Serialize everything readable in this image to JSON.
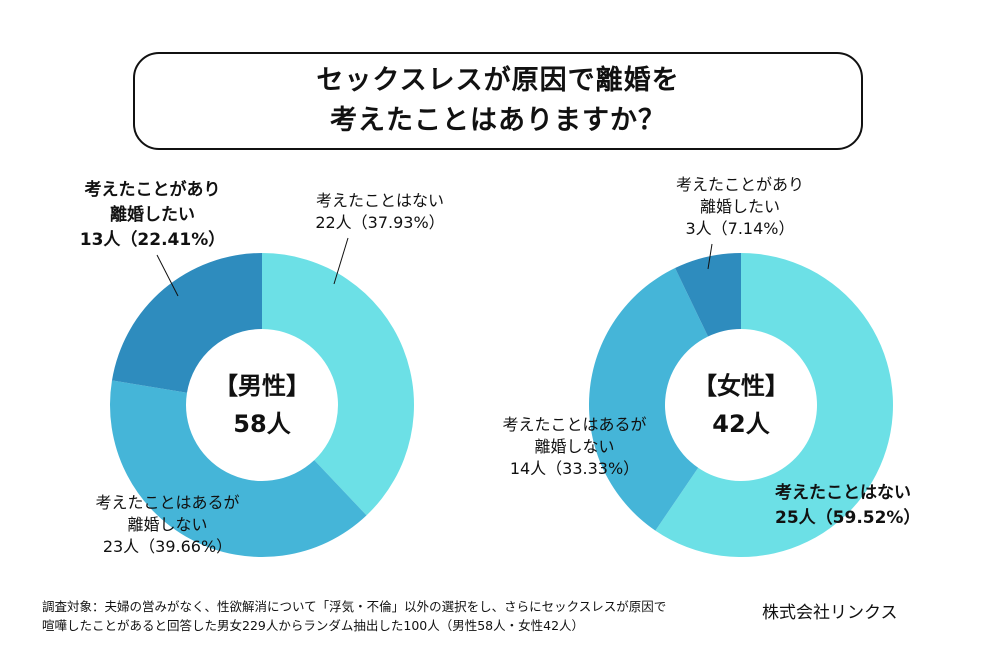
{
  "title": {
    "line1": "セックスレスが原因で離婚を",
    "line2": "考えたことはありますか？"
  },
  "colors": {
    "never": "#6ce0e6",
    "considered_not_divorce": "#45b5d8",
    "want_divorce": "#2e8cbe"
  },
  "chart_data": [
    {
      "type": "pie",
      "variant": "donut",
      "title": "【男性】",
      "total_label": "58人",
      "total": 58,
      "slices": [
        {
          "key": "never",
          "label_line1": "考えたことはない",
          "label_line2": "",
          "count_label": "22人（37.93%）",
          "count": 22,
          "percent": 37.93,
          "bold": false
        },
        {
          "key": "considered_not_divorce",
          "label_line1": "考えたことはあるが",
          "label_line2": "離婚しない",
          "count_label": "23人（39.66%）",
          "count": 23,
          "percent": 39.66,
          "bold": false
        },
        {
          "key": "want_divorce",
          "label_line1": "考えたことがあり",
          "label_line2": "離婚したい",
          "count_label": "13人（22.41%）",
          "count": 13,
          "percent": 22.41,
          "bold": true
        }
      ]
    },
    {
      "type": "pie",
      "variant": "donut",
      "title": "【女性】",
      "total_label": "42人",
      "total": 42,
      "slices": [
        {
          "key": "never",
          "label_line1": "考えたことはない",
          "label_line2": "",
          "count_label": "25人（59.52%）",
          "count": 25,
          "percent": 59.52,
          "bold": true
        },
        {
          "key": "considered_not_divorce",
          "label_line1": "考えたことはあるが",
          "label_line2": "離婚しない",
          "count_label": "14人（33.33%）",
          "count": 14,
          "percent": 33.33,
          "bold": false
        },
        {
          "key": "want_divorce",
          "label_line1": "考えたことがあり",
          "label_line2": "離婚したい",
          "count_label": "3人（7.14%）",
          "count": 3,
          "percent": 7.14,
          "bold": false
        }
      ]
    }
  ],
  "footer": {
    "note_line1": "調査対象：夫婦の営みがなく、性欲解消について「浮気・不倫」以外の選択をし、さらにセックスレスが原因で",
    "note_line2": "喧嘩したことがあると回答した男女229人からランダム抽出した100人（男性58人・女性42人）",
    "company": "株式会社リンクス"
  }
}
